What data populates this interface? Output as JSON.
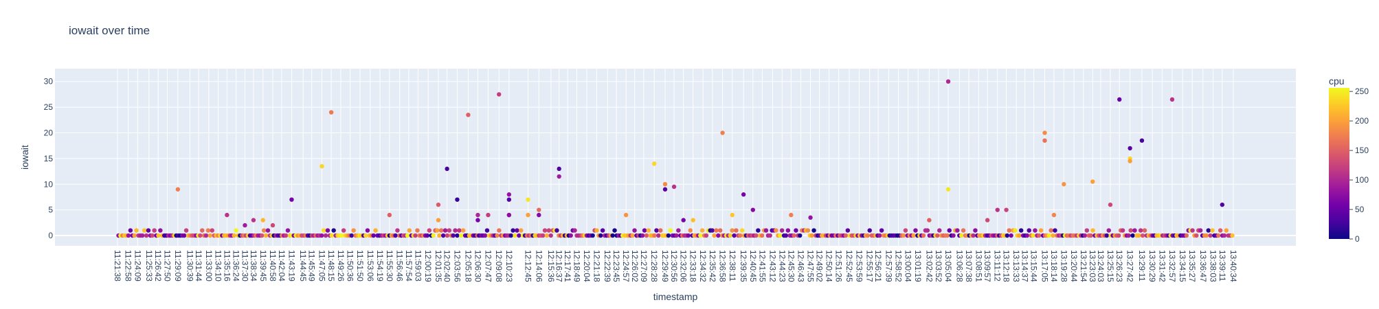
{
  "chart_data": {
    "type": "scatter",
    "title": "iowait over time",
    "xlabel": "timestamp",
    "ylabel": "iowait",
    "ylim": [
      -2,
      32.5
    ],
    "yticks": [
      0,
      5,
      10,
      15,
      20,
      25,
      30
    ],
    "colorbar": {
      "title": "cpu",
      "range": [
        0,
        256
      ],
      "ticks": [
        0,
        50,
        100,
        150,
        200,
        250
      ]
    },
    "colorscale": [
      "#0d0887",
      "#46039f",
      "#7201a8",
      "#9c179e",
      "#bd3786",
      "#d8576b",
      "#ed7953",
      "#fb9f3a",
      "#fdca26",
      "#f0f921"
    ],
    "x_start": "11:21:38",
    "x_end": "13:40:34",
    "x_tick_labels": [
      "11:21:38",
      "11:22:58",
      "11:24:09",
      "11:25:33",
      "11:26:42",
      "11:27:50",
      "11:29:09",
      "11:30:39",
      "11:31:44",
      "11:33:00",
      "11:34:10",
      "11:35:16",
      "11:36:24",
      "11:37:30",
      "11:38:34",
      "11:39:45",
      "11:40:58",
      "11:42:04",
      "11:43:19",
      "11:44:45",
      "11:45:49",
      "11:47:05",
      "11:48:15",
      "11:49:26",
      "11:50:36",
      "11:51:50",
      "11:53:06",
      "11:54:19",
      "11:55:30",
      "11:56:46",
      "11:57:54",
      "11:59:03",
      "12:00:19",
      "12:01:35",
      "12:02:40",
      "12:03:56",
      "12:05:18",
      "12:06:30",
      "12:07:47",
      "12:09:08",
      "12:10:23",
      "12:12:45",
      "12:14:06",
      "12:15:36",
      "12:16:37",
      "12:17:41",
      "12:18:49",
      "12:20:04",
      "12:21:18",
      "12:22:39",
      "12:23:45",
      "12:24:57",
      "12:26:02",
      "12:27:09",
      "12:28:28",
      "12:29:49",
      "12:30:56",
      "12:32:06",
      "12:33:18",
      "12:34:32",
      "12:35:42",
      "12:36:58",
      "12:38:11",
      "12:39:35",
      "12:40:45",
      "12:41:55",
      "12:43:12",
      "12:44:23",
      "12:45:30",
      "12:46:43",
      "12:47:55",
      "12:49:02",
      "12:50:14",
      "12:51:26",
      "12:52:45",
      "12:53:59",
      "12:55:17",
      "12:56:21",
      "12:57:39",
      "12:58:52",
      "13:00:04",
      "13:01:19",
      "13:02:42",
      "13:03:52",
      "13:05:04",
      "13:06:28",
      "13:07:38",
      "13:08:51",
      "13:09:57",
      "13:11:12",
      "13:12:18",
      "13:13:33",
      "13:14:37",
      "13:15:44",
      "13:17:05",
      "13:18:14",
      "13:19:28",
      "13:20:44",
      "13:21:54",
      "13:23:03",
      "13:24:03",
      "13:25:15",
      "13:26:23",
      "13:27:42",
      "13:29:11",
      "13:30:29",
      "13:31:42",
      "13:32:57",
      "13:34:15",
      "13:35:27",
      "13:36:47",
      "13:38:03",
      "13:39:11",
      "13:40:34"
    ],
    "notable_points": [
      {
        "t": "11:29:09",
        "y": 9,
        "cpu": 175
      },
      {
        "t": "11:35:16",
        "y": 4,
        "cpu": 110
      },
      {
        "t": "11:37:30",
        "y": 2,
        "cpu": 90
      },
      {
        "t": "11:38:34",
        "y": 3,
        "cpu": 110
      },
      {
        "t": "11:39:45",
        "y": 3,
        "cpu": 215
      },
      {
        "t": "11:40:58",
        "y": 2,
        "cpu": 130
      },
      {
        "t": "11:43:19",
        "y": 7,
        "cpu": 60
      },
      {
        "t": "11:47:05",
        "y": 13.5,
        "cpu": 235
      },
      {
        "t": "11:48:15",
        "y": 24,
        "cpu": 170
      },
      {
        "t": "11:55:30",
        "y": 4,
        "cpu": 150
      },
      {
        "t": "12:01:35",
        "y": 6,
        "cpu": 145
      },
      {
        "t": "12:01:35",
        "y": 3,
        "cpu": 200
      },
      {
        "t": "12:02:40",
        "y": 13,
        "cpu": 30
      },
      {
        "t": "12:03:56",
        "y": 7,
        "cpu": 20
      },
      {
        "t": "12:05:18",
        "y": 23.5,
        "cpu": 150
      },
      {
        "t": "12:06:30",
        "y": 4,
        "cpu": 100
      },
      {
        "t": "12:06:30",
        "y": 3,
        "cpu": 60
      },
      {
        "t": "12:07:47",
        "y": 4,
        "cpu": 120
      },
      {
        "t": "12:09:08",
        "y": 27.5,
        "cpu": 120
      },
      {
        "t": "12:10:23",
        "y": 8,
        "cpu": 80
      },
      {
        "t": "12:10:23",
        "y": 7,
        "cpu": 40
      },
      {
        "t": "12:10:23",
        "y": 4,
        "cpu": 130
      },
      {
        "t": "12:10:23",
        "y": 4,
        "cpu": 75
      },
      {
        "t": "12:12:45",
        "y": 7,
        "cpu": 245
      },
      {
        "t": "12:12:45",
        "y": 4,
        "cpu": 200
      },
      {
        "t": "12:14:06",
        "y": 4,
        "cpu": 70
      },
      {
        "t": "12:14:06",
        "y": 5,
        "cpu": 160
      },
      {
        "t": "12:16:37",
        "y": 13,
        "cpu": 35
      },
      {
        "t": "12:16:37",
        "y": 11.5,
        "cpu": 90
      },
      {
        "t": "12:24:57",
        "y": 4,
        "cpu": 190
      },
      {
        "t": "12:28:28",
        "y": 14,
        "cpu": 235
      },
      {
        "t": "12:29:49",
        "y": 10,
        "cpu": 185
      },
      {
        "t": "12:29:49",
        "y": 9,
        "cpu": 40
      },
      {
        "t": "12:30:56",
        "y": 9.5,
        "cpu": 110
      },
      {
        "t": "12:32:06",
        "y": 3,
        "cpu": 60
      },
      {
        "t": "12:33:18",
        "y": 3,
        "cpu": 220
      },
      {
        "t": "12:36:58",
        "y": 20,
        "cpu": 175
      },
      {
        "t": "12:38:11",
        "y": 4,
        "cpu": 225
      },
      {
        "t": "12:39:35",
        "y": 8,
        "cpu": 60
      },
      {
        "t": "12:40:45",
        "y": 5,
        "cpu": 70
      },
      {
        "t": "12:45:30",
        "y": 4,
        "cpu": 175
      },
      {
        "t": "12:47:55",
        "y": 3.5,
        "cpu": 80
      },
      {
        "t": "13:02:42",
        "y": 3,
        "cpu": 150
      },
      {
        "t": "13:05:04",
        "y": 30,
        "cpu": 100
      },
      {
        "t": "13:05:04",
        "y": 9,
        "cpu": 245
      },
      {
        "t": "13:09:57",
        "y": 3,
        "cpu": 130
      },
      {
        "t": "13:11:12",
        "y": 5,
        "cpu": 110
      },
      {
        "t": "13:12:18",
        "y": 5,
        "cpu": 125
      },
      {
        "t": "13:17:05",
        "y": 20,
        "cpu": 185
      },
      {
        "t": "13:17:05",
        "y": 18.5,
        "cpu": 165
      },
      {
        "t": "13:18:14",
        "y": 4,
        "cpu": 180
      },
      {
        "t": "13:19:28",
        "y": 10,
        "cpu": 190
      },
      {
        "t": "13:23:03",
        "y": 10.5,
        "cpu": 200
      },
      {
        "t": "13:25:15",
        "y": 6,
        "cpu": 130
      },
      {
        "t": "13:26:23",
        "y": 26.5,
        "cpu": 50
      },
      {
        "t": "13:27:42",
        "y": 17,
        "cpu": 40
      },
      {
        "t": "13:27:42",
        "y": 15,
        "cpu": 235
      },
      {
        "t": "13:27:42",
        "y": 14.5,
        "cpu": 200
      },
      {
        "t": "13:29:11",
        "y": 18.5,
        "cpu": 30
      },
      {
        "t": "13:32:57",
        "y": 26.5,
        "cpu": 110
      },
      {
        "t": "13:39:11",
        "y": 6,
        "cpu": 35
      }
    ],
    "baseline_points": {
      "count": 560,
      "y_values": [
        0,
        1
      ],
      "cpu_range": [
        0,
        256
      ]
    }
  }
}
